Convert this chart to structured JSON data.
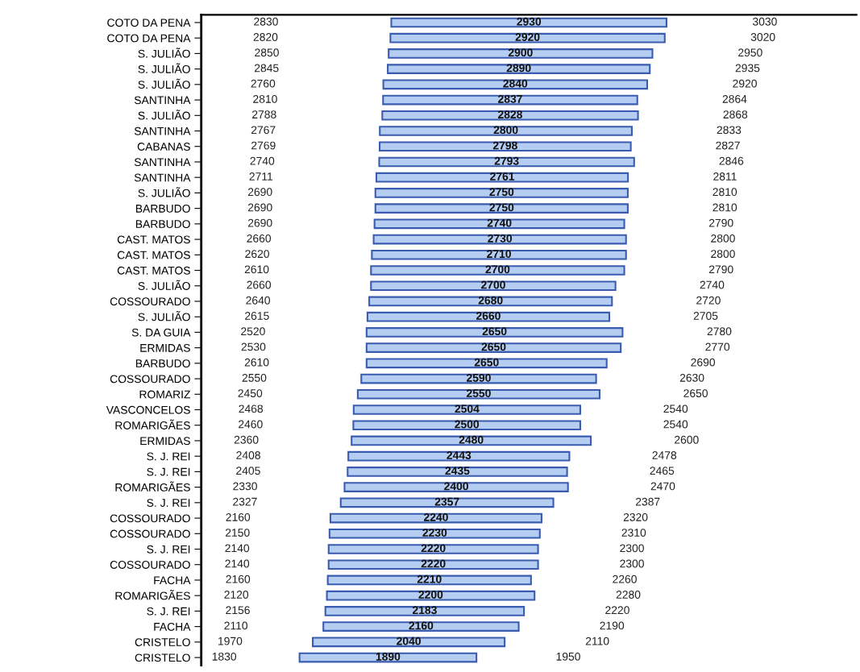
{
  "chart_data": {
    "type": "other",
    "color": "#b4cdf0",
    "data_labels": true,
    "categories": [
      "COTO DA PENA",
      "COTO DA PENA",
      "S. JULIÃO",
      "S. JULIÃO",
      "S. JULIÃO",
      "SANTINHA",
      "S. JULIÃO",
      "SANTINHA",
      "CABANAS",
      "SANTINHA",
      "SANTINHA",
      "S. JULIÃO",
      "BARBUDO",
      "BARBUDO",
      "CAST. MATOS",
      "CAST. MATOS",
      "CAST. MATOS",
      "S. JULIÃO",
      "COSSOURADO",
      "S. JULIÃO",
      "S. DA GUIA",
      "ERMIDAS",
      "BARBUDO",
      "COSSOURADO",
      "ROMARIZ",
      "VASCONCELOS",
      "ROMARIGÃES",
      "ERMIDAS",
      "S. J. REI",
      "S. J. REI",
      "ROMARIGÃES",
      "S. J. REI",
      "COSSOURADO",
      "COSSOURADO",
      "S. J. REI",
      "COSSOURADO",
      "FACHA",
      "ROMARIGÃES",
      "S. J. REI",
      "FACHA",
      "CRISTELO",
      "CRISTELO"
    ],
    "series": [
      {
        "values": [
          2830,
          2820,
          2850,
          2845,
          2760,
          2810,
          2788,
          2767,
          2769,
          2740,
          2711,
          2690,
          2690,
          2690,
          2660,
          2620,
          2610,
          2660,
          2640,
          2615,
          2520,
          2530,
          2610,
          2550,
          2450,
          2468,
          2460,
          2360,
          2408,
          2405,
          2330,
          2327,
          2160,
          2150,
          2140,
          2140,
          2160,
          2120,
          2156,
          2110,
          1970,
          1830
        ]
      },
      {
        "values": [
          2930,
          2920,
          2900,
          2890,
          2840,
          2837,
          2828,
          2800,
          2798,
          2793,
          2761,
          2750,
          2750,
          2740,
          2730,
          2710,
          2700,
          2700,
          2680,
          2660,
          2650,
          2650,
          2650,
          2590,
          2550,
          2504,
          2500,
          2480,
          2443,
          2435,
          2400,
          2357,
          2240,
          2230,
          2220,
          2220,
          2210,
          2200,
          2183,
          2160,
          2040,
          1890
        ]
      },
      {
        "values": [
          3030,
          3020,
          2950,
          2935,
          2920,
          2864,
          2868,
          2833,
          2827,
          2846,
          2811,
          2810,
          2810,
          2790,
          2800,
          2800,
          2790,
          2740,
          2720,
          2705,
          2780,
          2770,
          2690,
          2630,
          2650,
          2540,
          2540,
          2600,
          2478,
          2465,
          2470,
          2387,
          2320,
          2310,
          2300,
          2300,
          2260,
          2280,
          2220,
          2190,
          2110,
          1950
        ]
      }
    ]
  }
}
